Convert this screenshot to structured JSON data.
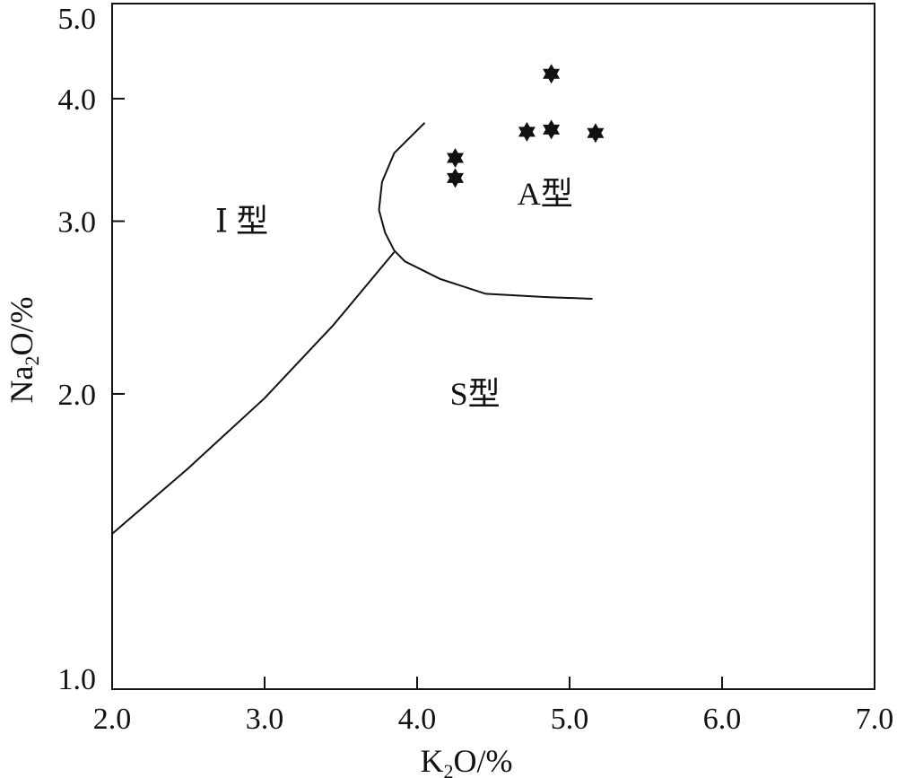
{
  "chart_data": {
    "type": "scatter",
    "xlabel": {
      "main": "K",
      "sub": "2",
      "rest": "O/%"
    },
    "ylabel": {
      "main": "Na",
      "sub": "2",
      "rest": "O/%"
    },
    "xlim": [
      2.0,
      7.0
    ],
    "ylim": [
      1.0,
      5.0
    ],
    "y_scale": "log",
    "xticks": [
      "2.0",
      "3.0",
      "4.0",
      "5.0",
      "6.0",
      "7.0"
    ],
    "yticks": [
      "1.0",
      "2.0",
      "3.0",
      "4.0",
      "5.0"
    ],
    "grid": false,
    "points": [
      {
        "x": 4.25,
        "y": 3.48
      },
      {
        "x": 4.25,
        "y": 3.32
      },
      {
        "x": 4.72,
        "y": 3.7
      },
      {
        "x": 4.88,
        "y": 3.72
      },
      {
        "x": 5.17,
        "y": 3.69
      },
      {
        "x": 4.88,
        "y": 4.24
      }
    ],
    "marker": "six-point-star",
    "boundaries": [
      {
        "name": "I-S boundary",
        "points": [
          [
            2.0,
            1.44
          ],
          [
            2.5,
            1.68
          ],
          [
            3.0,
            1.98
          ],
          [
            3.45,
            2.35
          ],
          [
            3.85,
            2.79
          ]
        ]
      },
      {
        "name": "A-type boundary",
        "points": [
          [
            4.05,
            3.78
          ],
          [
            3.85,
            3.52
          ],
          [
            3.77,
            3.29
          ],
          [
            3.75,
            3.08
          ],
          [
            3.79,
            2.92
          ],
          [
            3.85,
            2.8
          ],
          [
            3.92,
            2.73
          ],
          [
            4.15,
            2.62
          ],
          [
            4.45,
            2.53
          ],
          [
            4.85,
            2.51
          ],
          [
            5.15,
            2.5
          ]
        ]
      }
    ],
    "annotations": [
      {
        "text": "Ⅰ 型",
        "x": 2.85,
        "y": 3.0
      },
      {
        "text": "A型",
        "x": 4.84,
        "y": 3.2
      },
      {
        "text": "S型",
        "x": 4.38,
        "y": 2.0
      }
    ],
    "colors": {
      "axis": "#111111",
      "marker": "#111111",
      "line": "#111111"
    }
  }
}
